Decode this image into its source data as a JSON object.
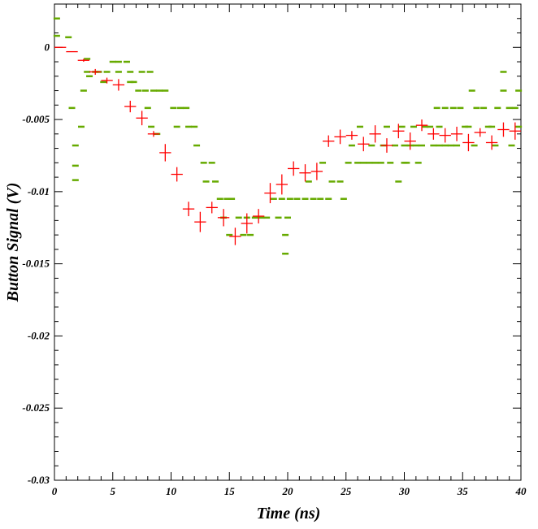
{
  "chart_data": {
    "type": "scatter",
    "title": "",
    "xlabel": "Time (ns)",
    "ylabel": "Button Signal (V)",
    "xlim": [
      0,
      40
    ],
    "ylim": [
      -0.03,
      0.003
    ],
    "x_ticks": [
      "0",
      "5",
      "10",
      "15",
      "20",
      "25",
      "30",
      "35",
      "40"
    ],
    "y_ticks": [
      "0",
      "-0.005",
      "-0.01",
      "-0.015",
      "-0.02",
      "-0.025",
      "-0.03"
    ],
    "grid": false,
    "legend": "none",
    "colors": {
      "main": "#ff0000",
      "spread": "#66aa00",
      "frame": "#000000"
    },
    "series": [
      {
        "style": "red-crosses-with-error-bars",
        "points": [
          {
            "x": 0.5,
            "y": 0.0,
            "yerr": 0.0
          },
          {
            "x": 1.5,
            "y": -0.0003,
            "yerr": 0.0
          },
          {
            "x": 2.5,
            "y": -0.0009,
            "yerr": 0.0001
          },
          {
            "x": 3.5,
            "y": -0.0017,
            "yerr": 0.0002
          },
          {
            "x": 4.5,
            "y": -0.0023,
            "yerr": 0.0002
          },
          {
            "x": 5.5,
            "y": -0.0026,
            "yerr": 0.0004
          },
          {
            "x": 6.5,
            "y": -0.0041,
            "yerr": 0.0004
          },
          {
            "x": 7.5,
            "y": -0.0049,
            "yerr": 0.0005
          },
          {
            "x": 8.5,
            "y": -0.006,
            "yerr": 0.0002
          },
          {
            "x": 9.5,
            "y": -0.0073,
            "yerr": 0.0006
          },
          {
            "x": 10.5,
            "y": -0.0088,
            "yerr": 0.0005
          },
          {
            "x": 11.5,
            "y": -0.0112,
            "yerr": 0.0005
          },
          {
            "x": 12.5,
            "y": -0.0121,
            "yerr": 0.0007
          },
          {
            "x": 13.5,
            "y": -0.0111,
            "yerr": 0.0004
          },
          {
            "x": 14.5,
            "y": -0.0118,
            "yerr": 0.0006
          },
          {
            "x": 15.5,
            "y": -0.0131,
            "yerr": 0.0006
          },
          {
            "x": 16.5,
            "y": -0.0122,
            "yerr": 0.0007
          },
          {
            "x": 17.5,
            "y": -0.0117,
            "yerr": 0.0005
          },
          {
            "x": 18.5,
            "y": -0.0101,
            "yerr": 0.0007
          },
          {
            "x": 19.5,
            "y": -0.0095,
            "yerr": 0.0007
          },
          {
            "x": 20.5,
            "y": -0.0084,
            "yerr": 0.0005
          },
          {
            "x": 21.5,
            "y": -0.0087,
            "yerr": 0.0006
          },
          {
            "x": 22.5,
            "y": -0.0086,
            "yerr": 0.0006
          },
          {
            "x": 23.5,
            "y": -0.0065,
            "yerr": 0.0004
          },
          {
            "x": 24.5,
            "y": -0.0062,
            "yerr": 0.0005
          },
          {
            "x": 25.5,
            "y": -0.0061,
            "yerr": 0.0003
          },
          {
            "x": 26.5,
            "y": -0.0067,
            "yerr": 0.0005
          },
          {
            "x": 27.5,
            "y": -0.006,
            "yerr": 0.0006
          },
          {
            "x": 28.5,
            "y": -0.0068,
            "yerr": 0.0005
          },
          {
            "x": 29.5,
            "y": -0.0058,
            "yerr": 0.0005
          },
          {
            "x": 30.5,
            "y": -0.0065,
            "yerr": 0.0006
          },
          {
            "x": 31.5,
            "y": -0.0054,
            "yerr": 0.0004
          },
          {
            "x": 32.5,
            "y": -0.006,
            "yerr": 0.0004
          },
          {
            "x": 33.5,
            "y": -0.0061,
            "yerr": 0.0005
          },
          {
            "x": 34.5,
            "y": -0.006,
            "yerr": 0.0005
          },
          {
            "x": 35.5,
            "y": -0.0066,
            "yerr": 0.0006
          },
          {
            "x": 36.5,
            "y": -0.0059,
            "yerr": 0.0003
          },
          {
            "x": 37.5,
            "y": -0.0066,
            "yerr": 0.0005
          },
          {
            "x": 38.5,
            "y": -0.0057,
            "yerr": 0.0005
          },
          {
            "x": 39.5,
            "y": -0.0058,
            "yerr": 0.0006
          }
        ]
      },
      {
        "style": "green-dash-samples",
        "points": [
          [
            0.2,
            0.002
          ],
          [
            0.2,
            0.0008
          ],
          [
            1.2,
            0.0007
          ],
          [
            1.5,
            -0.0042
          ],
          [
            1.8,
            -0.0068
          ],
          [
            1.8,
            -0.0082
          ],
          [
            1.8,
            -0.0092
          ],
          [
            2.3,
            -0.0055
          ],
          [
            2.5,
            -0.003
          ],
          [
            2.8,
            -0.0017
          ],
          [
            2.8,
            -0.0008
          ],
          [
            3.0,
            -0.002
          ],
          [
            3.5,
            -0.0017
          ],
          [
            3.8,
            -0.0017
          ],
          [
            4.5,
            -0.0017
          ],
          [
            4.2,
            -0.0024
          ],
          [
            5.0,
            -0.001
          ],
          [
            5.5,
            -0.001
          ],
          [
            5.5,
            -0.0017
          ],
          [
            6.5,
            -0.0017
          ],
          [
            6.2,
            -0.001
          ],
          [
            6.5,
            -0.0024
          ],
          [
            6.8,
            -0.0024
          ],
          [
            7.2,
            -0.003
          ],
          [
            7.8,
            -0.003
          ],
          [
            7.5,
            -0.0017
          ],
          [
            8.2,
            -0.0017
          ],
          [
            8.5,
            -0.003
          ],
          [
            9.0,
            -0.003
          ],
          [
            9.5,
            -0.003
          ],
          [
            8.0,
            -0.0042
          ],
          [
            8.3,
            -0.0055
          ],
          [
            8.8,
            -0.006
          ],
          [
            10.2,
            -0.0042
          ],
          [
            10.8,
            -0.0042
          ],
          [
            11.3,
            -0.0042
          ],
          [
            10.5,
            -0.0055
          ],
          [
            11.5,
            -0.0055
          ],
          [
            12.0,
            -0.0055
          ],
          [
            12.2,
            -0.0068
          ],
          [
            12.8,
            -0.008
          ],
          [
            13.5,
            -0.008
          ],
          [
            13.0,
            -0.0093
          ],
          [
            13.8,
            -0.0093
          ],
          [
            14.2,
            -0.0105
          ],
          [
            14.8,
            -0.0105
          ],
          [
            15.2,
            -0.0105
          ],
          [
            14.5,
            -0.0118
          ],
          [
            15.0,
            -0.013
          ],
          [
            15.8,
            -0.0118
          ],
          [
            16.5,
            -0.0118
          ],
          [
            17.2,
            -0.0118
          ],
          [
            17.8,
            -0.0118
          ],
          [
            16.2,
            -0.013
          ],
          [
            16.8,
            -0.013
          ],
          [
            18.2,
            -0.0118
          ],
          [
            18.8,
            -0.0105
          ],
          [
            19.5,
            -0.0105
          ],
          [
            19.2,
            -0.0118
          ],
          [
            20.0,
            -0.0118
          ],
          [
            19.8,
            -0.0143
          ],
          [
            19.8,
            -0.013
          ],
          [
            20.2,
            -0.0105
          ],
          [
            20.8,
            -0.0105
          ],
          [
            21.5,
            -0.0105
          ],
          [
            22.2,
            -0.0105
          ],
          [
            22.8,
            -0.0105
          ],
          [
            23.5,
            -0.0105
          ],
          [
            21.8,
            -0.0093
          ],
          [
            23.0,
            -0.008
          ],
          [
            23.8,
            -0.0093
          ],
          [
            24.5,
            -0.0093
          ],
          [
            24.8,
            -0.0105
          ],
          [
            25.2,
            -0.008
          ],
          [
            25.5,
            -0.0068
          ],
          [
            26.0,
            -0.008
          ],
          [
            26.5,
            -0.008
          ],
          [
            27.0,
            -0.008
          ],
          [
            27.5,
            -0.008
          ],
          [
            28.0,
            -0.008
          ],
          [
            28.8,
            -0.008
          ],
          [
            28.2,
            -0.0068
          ],
          [
            29.2,
            -0.0068
          ],
          [
            29.5,
            -0.0093
          ],
          [
            30.0,
            -0.0068
          ],
          [
            30.5,
            -0.0068
          ],
          [
            31.0,
            -0.0068
          ],
          [
            31.5,
            -0.0068
          ],
          [
            30.8,
            -0.0055
          ],
          [
            31.8,
            -0.0055
          ],
          [
            29.8,
            -0.0055
          ],
          [
            30.2,
            -0.008
          ],
          [
            31.2,
            -0.008
          ],
          [
            32.5,
            -0.0068
          ],
          [
            33.0,
            -0.0068
          ],
          [
            33.5,
            -0.0068
          ],
          [
            34.0,
            -0.0068
          ],
          [
            34.5,
            -0.0068
          ],
          [
            32.2,
            -0.0055
          ],
          [
            32.8,
            -0.0042
          ],
          [
            33.5,
            -0.0042
          ],
          [
            34.2,
            -0.0042
          ],
          [
            34.8,
            -0.0042
          ],
          [
            35.2,
            -0.0055
          ],
          [
            35.5,
            -0.0055
          ],
          [
            35.8,
            -0.003
          ],
          [
            36.2,
            -0.0042
          ],
          [
            36.8,
            -0.0042
          ],
          [
            37.2,
            -0.0055
          ],
          [
            37.5,
            -0.0055
          ],
          [
            38.0,
            -0.0042
          ],
          [
            38.5,
            -0.003
          ],
          [
            38.5,
            -0.0017
          ],
          [
            39.0,
            -0.0042
          ],
          [
            39.5,
            -0.0042
          ],
          [
            39.2,
            -0.0068
          ],
          [
            39.8,
            -0.003
          ],
          [
            37.8,
            -0.0068
          ],
          [
            36.0,
            -0.0068
          ],
          [
            39.8,
            -0.0055
          ],
          [
            33.0,
            -0.0055
          ],
          [
            27.2,
            -0.0068
          ],
          [
            26.2,
            -0.0055
          ],
          [
            28.5,
            -0.0055
          ],
          [
            30.0,
            -0.008
          ]
        ]
      }
    ]
  }
}
